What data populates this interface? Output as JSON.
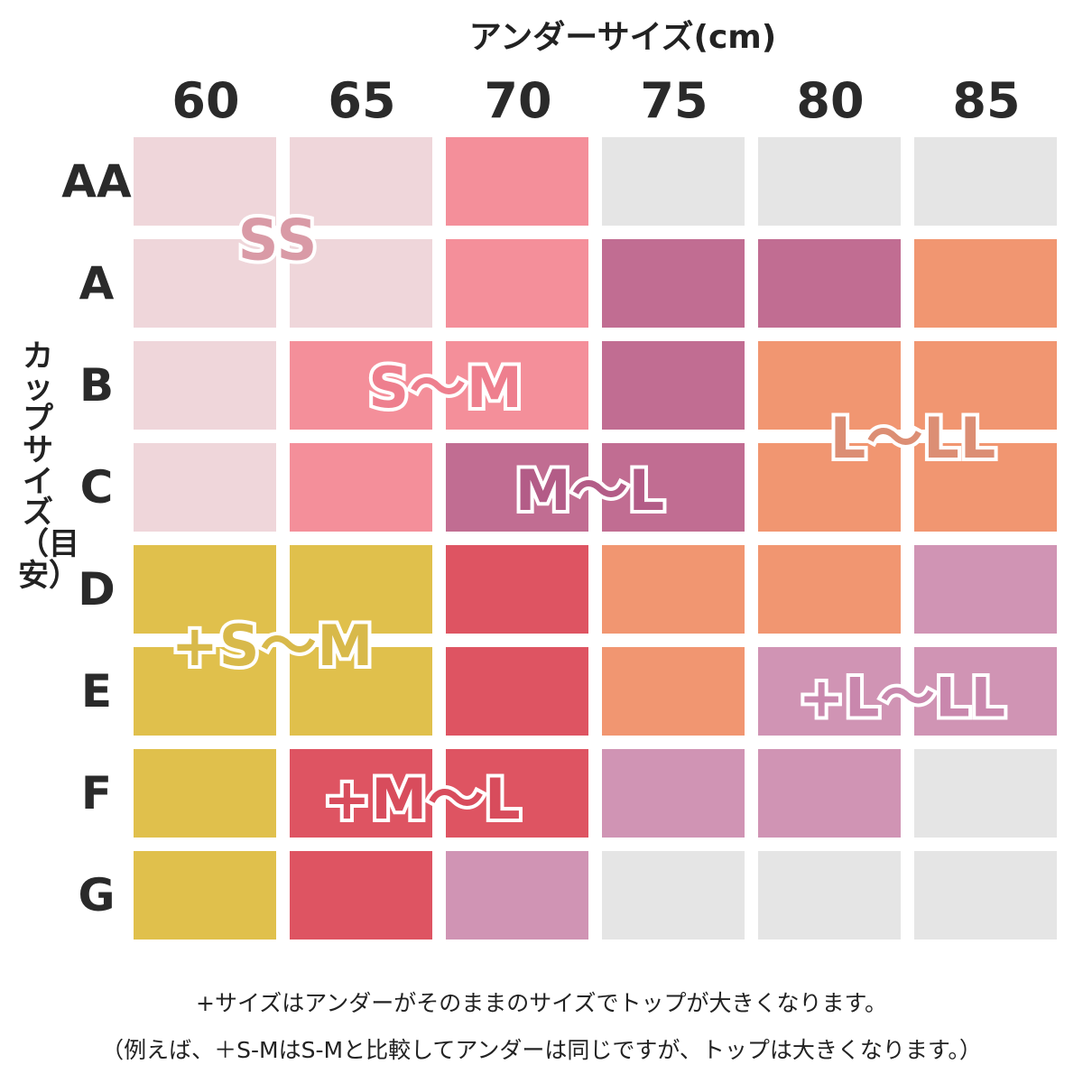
{
  "chart_data": {
    "type": "heatmap",
    "xlabel": "アンダーサイズ(cm)",
    "ylabel": "カップサイズ（目安）",
    "columns": [
      "60",
      "65",
      "70",
      "75",
      "80",
      "85"
    ],
    "rows": [
      "AA",
      "A",
      "B",
      "C",
      "D",
      "E",
      "F",
      "G"
    ],
    "grid": [
      [
        "SS",
        "SS",
        "S~M",
        null,
        null,
        null
      ],
      [
        "SS",
        "SS",
        "S~M",
        "M~L",
        "M~L",
        "L~LL"
      ],
      [
        "SS",
        "S~M",
        "S~M",
        "M~L",
        "L~LL",
        "L~LL"
      ],
      [
        "SS",
        "S~M",
        "M~L",
        "M~L",
        "L~LL",
        "L~LL"
      ],
      [
        "+S~M",
        "+S~M",
        "+M~L",
        "L~LL",
        "L~LL",
        "+L~LL"
      ],
      [
        "+S~M",
        "+S~M",
        "+M~L",
        "L~LL",
        "+L~LL",
        "+L~LL"
      ],
      [
        "+S~M",
        "+M~L",
        "+M~L",
        "+L~LL",
        "+L~LL",
        null
      ],
      [
        "+S~M",
        "+M~L",
        "+L~LL",
        null,
        null,
        null
      ]
    ],
    "size_labels": [
      {
        "name": "SS",
        "label": "SS"
      },
      {
        "name": "S~M",
        "label": "S～M"
      },
      {
        "name": "M~L",
        "label": "M～L"
      },
      {
        "name": "L~LL",
        "label": "L～LL"
      },
      {
        "name": "+S~M",
        "label": "+S～M"
      },
      {
        "name": "+L~LL",
        "label": "+L～LL"
      },
      {
        "name": "+M~L",
        "label": "+M～L"
      }
    ],
    "colors": {
      "SS": "#efd6da",
      "S~M": "#f48f9a",
      "M~L": "#c16d92",
      "L~LL": "#f19671",
      "+S~M": "#e0c04c",
      "+M~L": "#de5462",
      "+L~LL": "#d094b4",
      "none": "#e5e5e5"
    },
    "label_colors": {
      "SS": "#d99aa6",
      "S~M": "#ee7f8e",
      "M~L": "#b35c87",
      "L~LL": "#dc8e74",
      "+S~M": "#d8b94a",
      "+L~LL": "#c987ad",
      "+M~L": "#d84c5c"
    }
  },
  "notes": [
    "+サイズはアンダーがそのままのサイズでトップが大きくなります。",
    "（例えば、＋S-MはS-Mと比較してアンダーは同じですが、トップは大きくなります。）"
  ]
}
